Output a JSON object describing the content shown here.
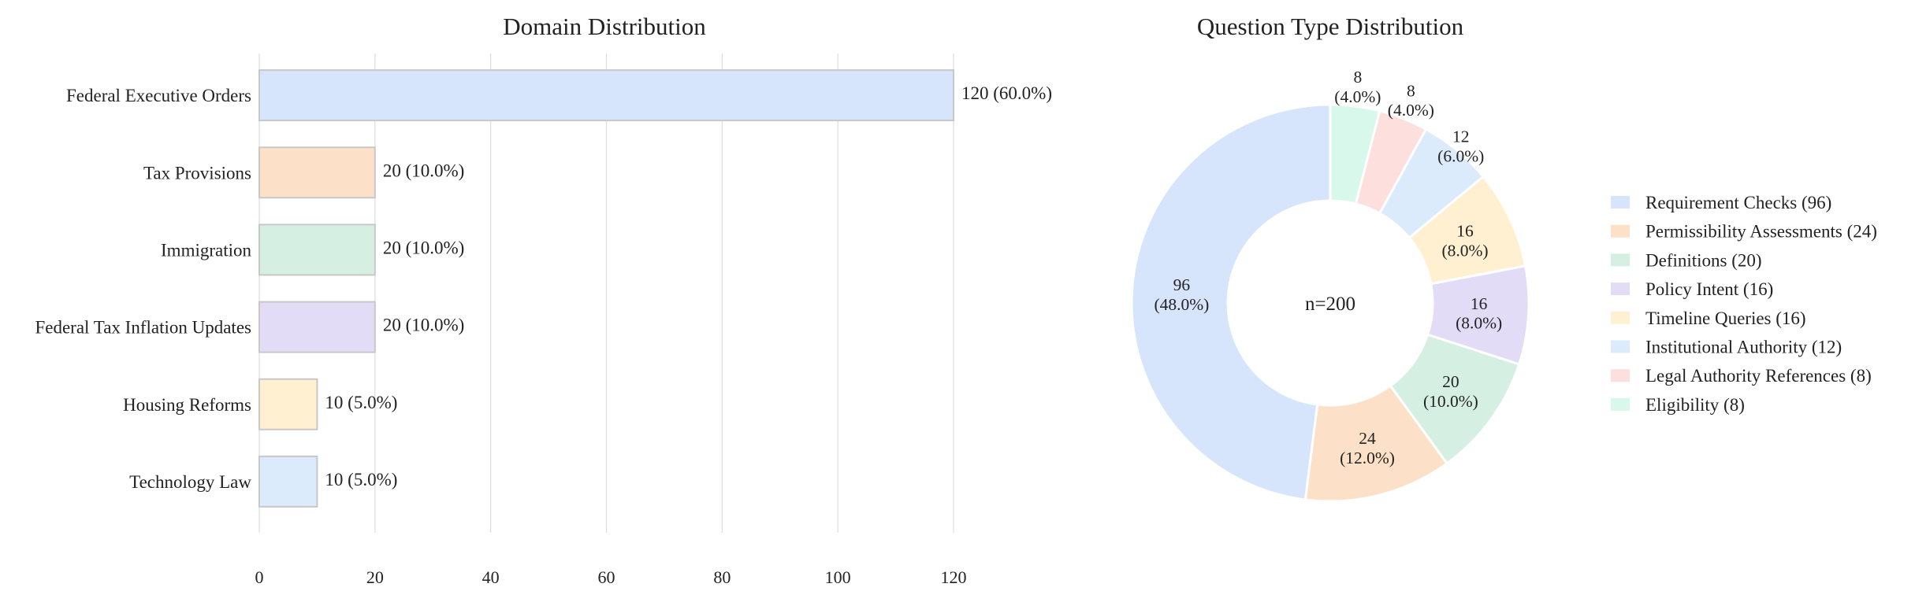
{
  "chart_data": [
    {
      "type": "bar",
      "orientation": "horizontal",
      "title": "Domain Distribution",
      "xlabel": "",
      "ylabel": "",
      "xlim": [
        0,
        120
      ],
      "x_ticks": [
        0,
        20,
        40,
        60,
        80,
        100,
        120
      ],
      "x_tick_labels": [
        "0",
        "20",
        "40",
        "60",
        "80",
        "100",
        "120"
      ],
      "grid": "vertical",
      "categories": [
        "Federal Executive Orders",
        "Tax Provisions",
        "Immigration",
        "Federal Tax Inflation Updates",
        "Housing Reforms",
        "Technology Law"
      ],
      "values": [
        120,
        20,
        20,
        20,
        10,
        10
      ],
      "data_labels": [
        "120 (60.0%)",
        "20 (10.0%)",
        "20 (10.0%)",
        "20 (10.0%)",
        "10 (5.0%)",
        "10 (5.0%)"
      ],
      "colors": [
        "#d6e4fc",
        "#fde0c8",
        "#d5f0e2",
        "#e3dcf6",
        "#fff0d2",
        "#dcebfc"
      ]
    },
    {
      "type": "pie",
      "style": "donut",
      "title": "Question Type Distribution",
      "center_label": "n=200",
      "legend_position": "right",
      "categories": [
        "Requirement Checks",
        "Permissibility Assessments",
        "Definitions",
        "Policy Intent",
        "Timeline Queries",
        "Institutional Authority",
        "Legal Authority References",
        "Eligibility"
      ],
      "values": [
        96,
        24,
        20,
        16,
        16,
        12,
        8,
        8
      ],
      "legend_labels": [
        "Requirement Checks (96)",
        "Permissibility Assessments (24)",
        "Definitions (20)",
        "Policy Intent (16)",
        "Timeline Queries (16)",
        "Institutional Authority (12)",
        "Legal Authority References (8)",
        "Eligibility (8)"
      ],
      "slice_labels": [
        [
          "96",
          "(48.0%)"
        ],
        [
          "24",
          "(12.0%)"
        ],
        [
          "20",
          "(10.0%)"
        ],
        [
          "16",
          "(8.0%)"
        ],
        [
          "16",
          "(8.0%)"
        ],
        [
          "12",
          "(6.0%)"
        ],
        [
          "8",
          "(4.0%)"
        ],
        [
          "8",
          "(4.0%)"
        ]
      ],
      "colors": [
        "#d6e4fc",
        "#fde0c8",
        "#d5f0e2",
        "#e3dcf6",
        "#fff0d2",
        "#dcebfc",
        "#fde0de",
        "#d8f8ec"
      ],
      "start_angle_deg": 90,
      "direction": "counterclockwise"
    }
  ]
}
